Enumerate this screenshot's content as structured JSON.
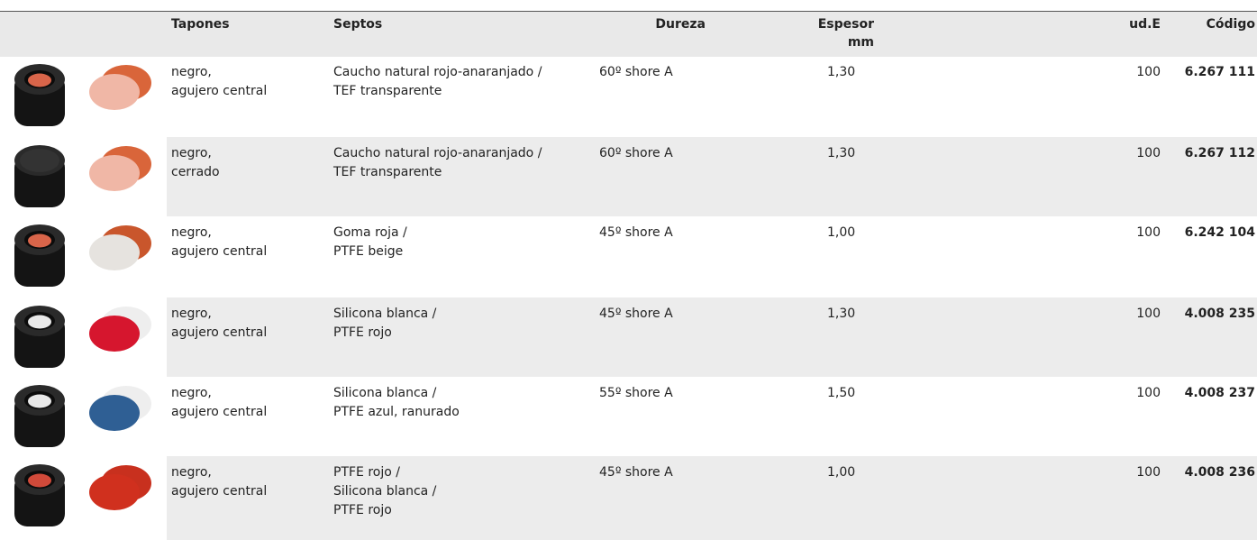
{
  "header": {
    "columns": [
      [
        "Tapones"
      ],
      [
        "Septos"
      ],
      [
        "Dureza"
      ],
      [
        "Espesor",
        "mm"
      ],
      [
        "ud.E"
      ],
      [
        "Código"
      ]
    ]
  },
  "rows": [
    {
      "tapon": [
        "negro,",
        "agujero central"
      ],
      "septo": [
        "Caucho natural rojo-anaranjado /",
        "TEF transparente"
      ],
      "dureza": "60º shore A",
      "espesor": "1,30",
      "ude": "100",
      "codigo": "6.267 111"
    },
    {
      "tapon": [
        "negro,",
        "cerrado"
      ],
      "septo": [
        "Caucho natural rojo-anaranjado /",
        "TEF transparente"
      ],
      "dureza": "60º shore A",
      "espesor": "1,30",
      "ude": "100",
      "codigo": "6.267 112"
    },
    {
      "tapon": [
        "negro,",
        "agujero central"
      ],
      "septo": [
        "Goma roja /",
        "PTFE beige"
      ],
      "dureza": "45º shore A",
      "espesor": "1,00",
      "ude": "100",
      "codigo": "6.242 104"
    },
    {
      "tapon": [
        "negro,",
        "agujero central"
      ],
      "septo": [
        "Silicona blanca /",
        "PTFE rojo"
      ],
      "dureza": "45º shore A",
      "espesor": "1,30",
      "ude": "100",
      "codigo": "4.008 235"
    },
    {
      "tapon": [
        "negro,",
        "agujero central"
      ],
      "septo": [
        "Silicona blanca /",
        "PTFE azul, ranurado"
      ],
      "dureza": "55º shore A",
      "espesor": "1,50",
      "ude": "100",
      "codigo": "4.008 237"
    },
    {
      "tapon": [
        "negro,",
        "agujero central"
      ],
      "septo": [
        "PTFE rojo /",
        "Silicona blanca /",
        "PTFE rojo"
      ],
      "dureza": "45º shore A",
      "espesor": "1,00",
      "ude": "100",
      "codigo": "4.008 236"
    }
  ]
}
